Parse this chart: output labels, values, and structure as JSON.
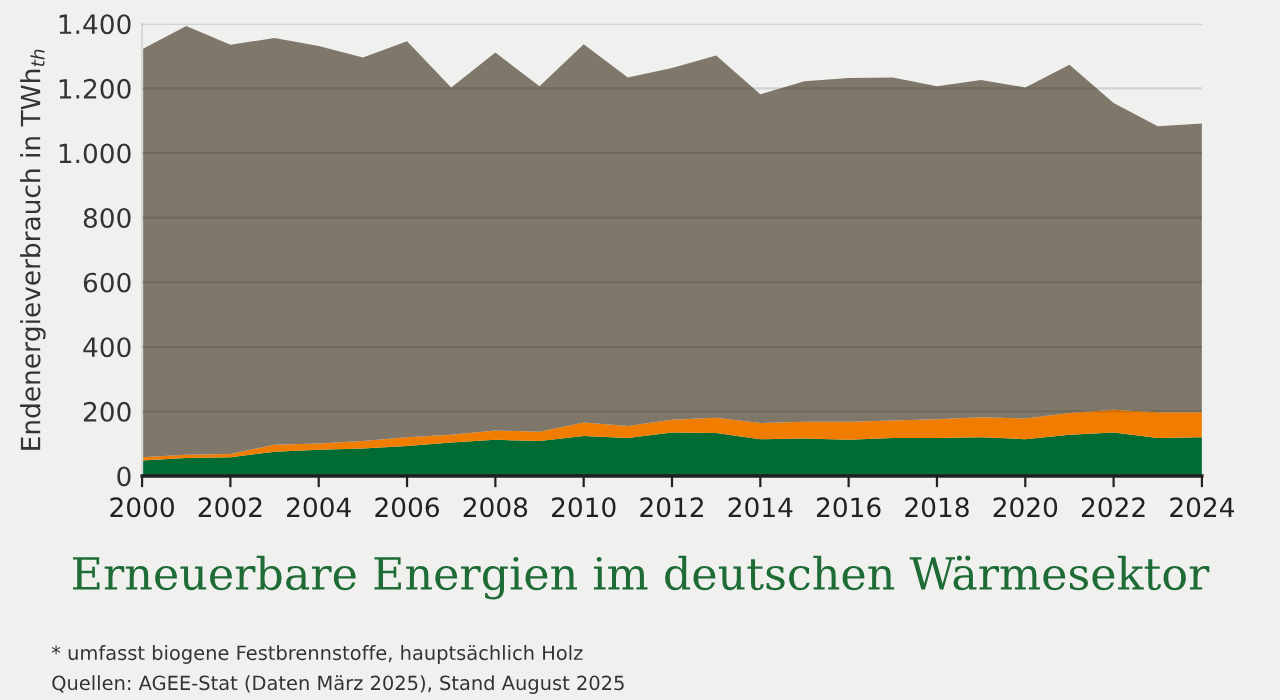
{
  "chart_data": {
    "type": "area",
    "stacked": true,
    "title": "Erneuerbare Energien im deutschen Wärmesektor",
    "ylabel": "Endenergieverbrauch in TWh$_{th}$",
    "annotations": [
      "* umfasst biogene Festbrennstoffe, hauptsächlich Holz",
      "Quellen: AGEE-Stat (Daten März 2025), Stand August 2025"
    ],
    "x": [
      2000,
      2001,
      2002,
      2003,
      2004,
      2005,
      2006,
      2007,
      2008,
      2009,
      2010,
      2011,
      2012,
      2013,
      2014,
      2015,
      2016,
      2017,
      2018,
      2019,
      2020,
      2021,
      2022,
      2023,
      2024
    ],
    "series": [
      {
        "color": "#006b33",
        "values": [
          48,
          56,
          58,
          75,
          81,
          85,
          93,
          104,
          112,
          108,
          124,
          118,
          135,
          133,
          114,
          116,
          112,
          118,
          118,
          120,
          114,
          128,
          135,
          118,
          120
        ]
      },
      {
        "color": "#f07d00",
        "values": [
          10,
          10,
          10,
          22,
          20,
          23,
          27,
          24,
          29,
          29,
          42,
          37,
          39,
          47,
          50,
          52,
          56,
          54,
          58,
          62,
          64,
          67,
          70,
          79,
          77
        ]
      },
      {
        "color": "#7f786a",
        "values": [
          1263,
          1327,
          1267,
          1259,
          1230,
          1188,
          1226,
          1075,
          1170,
          1070,
          1171,
          1079,
          1089,
          1122,
          1018,
          1054,
          1064,
          1062,
          1031,
          1044,
          1025,
          1078,
          950,
          886,
          894
        ]
      }
    ],
    "xlim": [
      2000,
      2024
    ],
    "xticks": [
      2000,
      2002,
      2004,
      2006,
      2008,
      2010,
      2012,
      2014,
      2016,
      2018,
      2020,
      2022,
      2024
    ],
    "ylim": [
      0,
      1400
    ],
    "yticks": [
      0,
      200,
      400,
      600,
      800,
      {
        "value": 1000,
        "label": "1.000"
      },
      {
        "value": 1200,
        "label": "1.200"
      },
      {
        "value": 1400,
        "label": "1.400"
      }
    ],
    "grid": "y",
    "legend": false
  }
}
